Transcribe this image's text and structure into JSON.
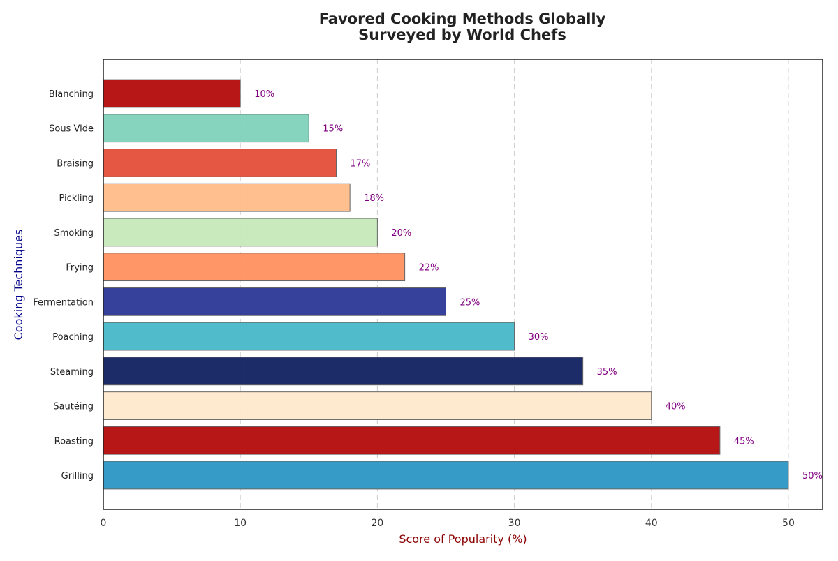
{
  "chart_data": {
    "type": "bar",
    "orientation": "horizontal",
    "title_line1": "Favored Cooking Methods Globally",
    "title_line2": "Surveyed by World Chefs",
    "xlabel": "Score of Popularity (%)",
    "ylabel": "Cooking Techniques",
    "xlim": [
      0,
      52.5
    ],
    "xticks": [
      0,
      10,
      20,
      30,
      40,
      50
    ],
    "grid": "vertical dashed",
    "categories": [
      "Grilling",
      "Roasting",
      "Sautéing",
      "Steaming",
      "Poaching",
      "Fermentation",
      "Frying",
      "Smoking",
      "Pickling",
      "Braising",
      "Sous Vide",
      "Blanching"
    ],
    "values": [
      50,
      45,
      40,
      35,
      30,
      25,
      22,
      20,
      18,
      17,
      15,
      10
    ],
    "data_labels": [
      "50%",
      "45%",
      "40%",
      "35%",
      "30%",
      "25%",
      "22%",
      "20%",
      "18%",
      "17%",
      "15%",
      "10%"
    ],
    "colors": [
      "#2b97c4",
      "#b40b0b",
      "#fde9cc",
      "#0f2160",
      "#47b7c8",
      "#2b3797",
      "#fe9060",
      "#c6e9b8",
      "#ffbc88",
      "#e44e38",
      "#80d1bb",
      "#b40b0b"
    ],
    "colors_note_is_visual": true,
    "title_color": "#222222",
    "xlabel_color": "#8b0000",
    "ylabel_color": "#00008b",
    "data_label_color": "#800080"
  }
}
